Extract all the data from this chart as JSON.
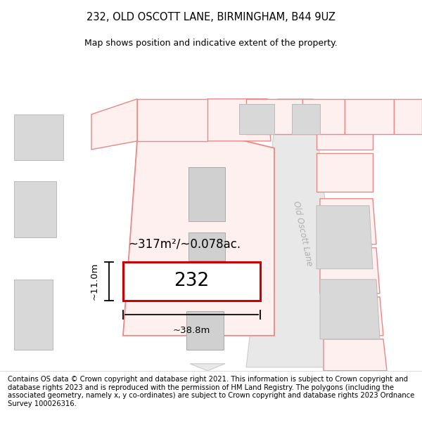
{
  "title_line1": "232, OLD OSCOTT LANE, BIRMINGHAM, B44 9UZ",
  "title_line2": "Map shows position and indicative extent of the property.",
  "property_number": "232",
  "area_text": "~317m²/~0.078ac.",
  "width_text": "~38.8m",
  "height_text": "~11.0m",
  "footer_lines": [
    "Contains OS data © Crown copyright and database right 2021. This information is subject to Crown copyright and database rights 2023 and is reproduced with the permission of",
    "HM Land Registry. The polygons (including the associated geometry, namely x, y co-ordinates) are subject to Crown copyright and database rights 2023 Ordnance Survey",
    "100026316."
  ],
  "title_fontsize": 10.5,
  "subtitle_fontsize": 9,
  "footer_fontsize": 7.2,
  "property_edge": "#cc0000",
  "plot_edge": "#e88888",
  "plot_fill": "#ffffff",
  "road_color": "#d8d8d8",
  "building_fill": "#d0d0d0",
  "building_edge": "#aaaaaa",
  "road_label_color": "#aaaaaa",
  "dim_color": "#000000"
}
